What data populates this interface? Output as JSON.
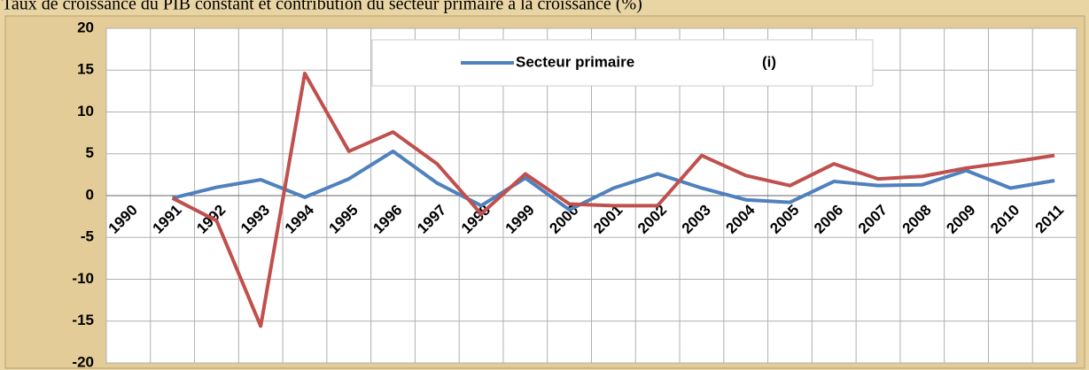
{
  "chart_data": {
    "type": "line",
    "title": "Taux de croissance du PIB constant et contribution du secteur primaire à la croissance (%)",
    "categories": [
      "1990",
      "1991",
      "1992",
      "1993",
      "1994",
      "1995",
      "1996",
      "1997",
      "1998",
      "1999",
      "2000",
      "2001",
      "2002",
      "2003",
      "2004",
      "2005",
      "2006",
      "2007",
      "2008",
      "2009",
      "2010",
      "2011"
    ],
    "series": [
      {
        "name": "Secteur primaire",
        "color": "#4f81bd",
        "values": [
          null,
          -0.3,
          1.0,
          1.9,
          -0.2,
          2.0,
          5.3,
          1.5,
          -1.2,
          2.1,
          -1.7,
          0.9,
          2.6,
          0.9,
          -0.5,
          -0.8,
          1.7,
          1.2,
          1.3,
          3.0,
          0.9,
          1.8
        ]
      },
      {
        "name": "(i)",
        "color": "#c0504d",
        "values": [
          null,
          -0.3,
          -3.0,
          -15.6,
          14.6,
          5.3,
          7.6,
          3.8,
          -2.2,
          2.6,
          -1.0,
          -1.2,
          -1.2,
          4.8,
          2.4,
          1.2,
          3.8,
          2.0,
          2.3,
          3.3,
          4.0,
          4.8
        ]
      }
    ],
    "ylim": [
      -20,
      20
    ],
    "yticks": [
      -20,
      -15,
      -10,
      -5,
      0,
      5,
      10,
      15,
      20
    ],
    "grid": true
  }
}
